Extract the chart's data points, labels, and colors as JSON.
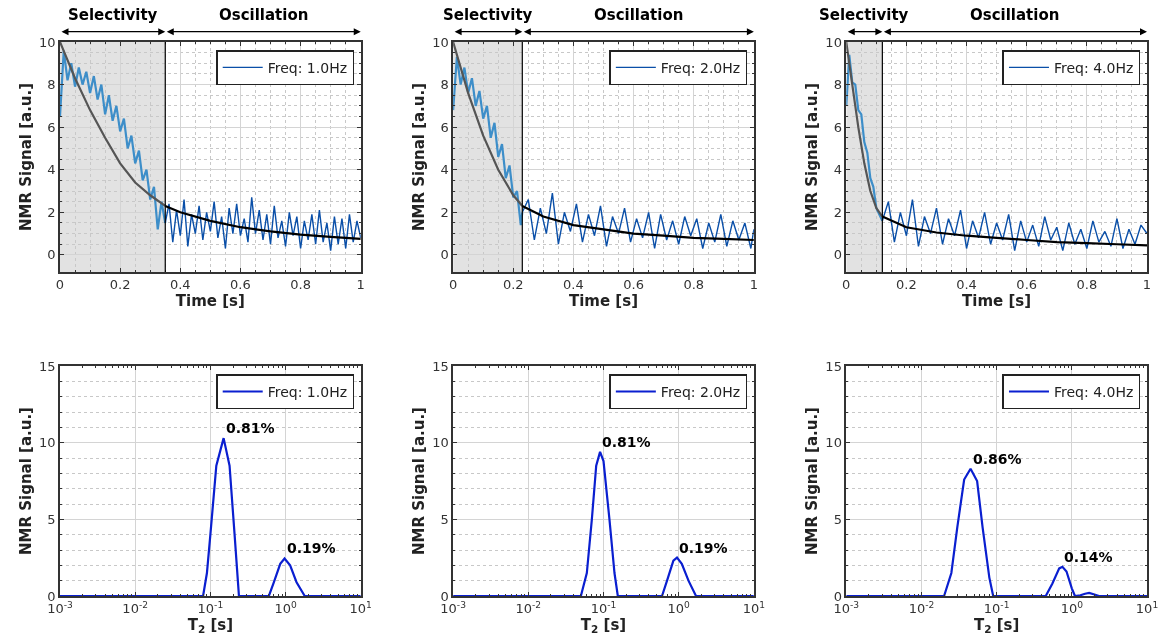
{
  "chart_data": [
    {
      "type": "line",
      "xlabel": "Time [s]",
      "ylabel": "NMR Signal [a.u.]",
      "xlim": [
        0,
        1
      ],
      "ylim": [
        -0.8,
        10
      ],
      "xticks": [
        0,
        0.2,
        0.4,
        0.6,
        0.8,
        1
      ],
      "yticks": [
        0,
        2,
        4,
        6,
        8,
        10
      ],
      "grid": true,
      "legend": "top right",
      "bands": [
        {
          "axis": "x",
          "from": 0,
          "to": 0.35,
          "label": "Selectivity",
          "color": "#e2e2e2"
        }
      ],
      "annotations": [
        "Oscillation"
      ],
      "ref_lines": [
        {
          "axis": "x",
          "value": 0.35,
          "color": "#000000"
        }
      ],
      "series": [
        {
          "color": "#3d8ec9",
          "x": [
            0,
            0.0125,
            0.025,
            0.0375,
            0.05,
            0.0625,
            0.075,
            0.0875,
            0.1,
            0.1125,
            0.125,
            0.1375,
            0.15,
            0.1625,
            0.175,
            0.1875,
            0.2,
            0.2125,
            0.225,
            0.2375,
            0.25,
            0.2625,
            0.275,
            0.2875,
            0.3,
            0.3125,
            0.325,
            0.3375,
            0.35
          ],
          "values": [
            6.5,
            9.6,
            8.2,
            9.0,
            7.9,
            8.8,
            8.0,
            8.6,
            7.6,
            8.4,
            7.3,
            8.0,
            6.6,
            7.5,
            6.3,
            7.0,
            5.8,
            6.4,
            5.0,
            5.6,
            4.3,
            4.9,
            3.5,
            4.0,
            2.6,
            3.2,
            1.2,
            2.5,
            1.5
          ]
        },
        {
          "name": "Freq: 1.0Hz",
          "color": "#0a4fa8",
          "x": [
            0.35,
            0.3625,
            0.375,
            0.3875,
            0.4,
            0.4125,
            0.425,
            0.4375,
            0.45,
            0.4625,
            0.475,
            0.4875,
            0.5,
            0.5125,
            0.525,
            0.5375,
            0.55,
            0.5625,
            0.575,
            0.5875,
            0.6,
            0.6125,
            0.625,
            0.6375,
            0.65,
            0.6625,
            0.675,
            0.6875,
            0.7,
            0.7125,
            0.725,
            0.7375,
            0.75,
            0.7625,
            0.775,
            0.7875,
            0.8,
            0.8125,
            0.825,
            0.8375,
            0.85,
            0.8625,
            0.875,
            0.8875,
            0.9,
            0.9125,
            0.925,
            0.9375,
            0.95,
            0.9625,
            0.975,
            0.9875,
            1
          ],
          "values": [
            1.5,
            2.4,
            0.6,
            2.1,
            0.9,
            2.6,
            0.4,
            1.9,
            1.0,
            2.3,
            0.7,
            2.0,
            1.1,
            2.5,
            0.8,
            1.8,
            0.3,
            2.2,
            1.0,
            2.4,
            0.9,
            1.7,
            0.6,
            2.7,
            1.0,
            2.1,
            0.7,
            1.9,
            0.5,
            2.3,
            0.8,
            1.6,
            0.4,
            2.0,
            0.9,
            1.8,
            0.3,
            1.6,
            0.7,
            1.9,
            0.5,
            2.1,
            0.6,
            1.5,
            0.2,
            1.8,
            0.5,
            1.7,
            0.3,
            1.9,
            0.6,
            1.6,
            0.8
          ]
        },
        {
          "color": "#555555",
          "x": [
            0,
            0.05,
            0.1,
            0.15,
            0.2,
            0.25,
            0.3,
            0.35
          ],
          "values": [
            10,
            8.3,
            6.8,
            5.5,
            4.3,
            3.4,
            2.8,
            2.3
          ]
        },
        {
          "color": "#000000",
          "x": [
            0.35,
            0.4,
            0.5,
            0.6,
            0.7,
            0.8,
            0.9,
            1
          ],
          "values": [
            2.3,
            2.0,
            1.6,
            1.3,
            1.1,
            0.95,
            0.85,
            0.75
          ]
        }
      ]
    },
    {
      "type": "line",
      "xlabel": "Time [s]",
      "ylabel": "NMR Signal [a.u.]",
      "xlim": [
        0,
        1
      ],
      "ylim": [
        -0.8,
        10
      ],
      "xticks": [
        0,
        0.2,
        0.4,
        0.6,
        0.8,
        1
      ],
      "yticks": [
        0,
        2,
        4,
        6,
        8,
        10
      ],
      "grid": true,
      "legend": "top right",
      "bands": [
        {
          "axis": "x",
          "from": 0,
          "to": 0.23,
          "label": "Selectivity",
          "color": "#e2e2e2"
        }
      ],
      "annotations": [
        "Oscillation"
      ],
      "ref_lines": [
        {
          "axis": "x",
          "value": 0.23,
          "color": "#000000"
        }
      ],
      "series": [
        {
          "color": "#3d8ec9",
          "x": [
            0,
            0.0125,
            0.025,
            0.0375,
            0.05,
            0.0625,
            0.075,
            0.0875,
            0.1,
            0.1125,
            0.125,
            0.1375,
            0.15,
            0.1625,
            0.175,
            0.1875,
            0.2,
            0.2125,
            0.225,
            0.23
          ],
          "values": [
            6.8,
            9.3,
            8.0,
            8.8,
            7.6,
            8.3,
            7.0,
            7.7,
            6.4,
            7.0,
            5.5,
            6.2,
            4.6,
            5.2,
            3.6,
            4.2,
            2.7,
            3.0,
            1.4,
            2.0
          ]
        },
        {
          "name": "Freq: 2.0Hz",
          "color": "#0a4fa8",
          "x": [
            0.23,
            0.25,
            0.27,
            0.29,
            0.31,
            0.33,
            0.35,
            0.37,
            0.39,
            0.41,
            0.43,
            0.45,
            0.47,
            0.49,
            0.51,
            0.53,
            0.55,
            0.57,
            0.59,
            0.61,
            0.63,
            0.65,
            0.67,
            0.69,
            0.71,
            0.73,
            0.75,
            0.77,
            0.79,
            0.81,
            0.83,
            0.85,
            0.87,
            0.89,
            0.91,
            0.93,
            0.95,
            0.97,
            0.99,
            1
          ],
          "values": [
            2.0,
            2.6,
            0.7,
            2.2,
            1.0,
            2.9,
            0.5,
            2.0,
            1.1,
            2.4,
            0.6,
            1.9,
            0.9,
            2.3,
            0.4,
            1.8,
            1.0,
            2.2,
            0.6,
            1.7,
            0.8,
            2.0,
            0.3,
            1.9,
            0.7,
            1.6,
            0.5,
            1.8,
            0.9,
            1.7,
            0.3,
            1.5,
            0.6,
            1.9,
            0.4,
            1.6,
            0.7,
            1.5,
            0.3,
            1.2
          ]
        },
        {
          "color": "#555555",
          "x": [
            0,
            0.05,
            0.1,
            0.15,
            0.2,
            0.23
          ],
          "values": [
            10,
            7.6,
            5.6,
            4.0,
            2.8,
            2.3
          ]
        },
        {
          "color": "#000000",
          "x": [
            0.23,
            0.3,
            0.4,
            0.5,
            0.6,
            0.7,
            0.8,
            0.9,
            1
          ],
          "values": [
            2.3,
            1.8,
            1.4,
            1.2,
            1.0,
            0.9,
            0.8,
            0.75,
            0.7
          ]
        }
      ]
    },
    {
      "type": "line",
      "xlabel": "Time [s]",
      "ylabel": "NMR Signal [a.u.]",
      "xlim": [
        0,
        1
      ],
      "ylim": [
        -0.8,
        10
      ],
      "xticks": [
        0,
        0.2,
        0.4,
        0.6,
        0.8,
        1
      ],
      "yticks": [
        0,
        2,
        4,
        6,
        8,
        10
      ],
      "grid": true,
      "legend": "top right",
      "bands": [
        {
          "axis": "x",
          "from": 0,
          "to": 0.12,
          "label": "Selectivity",
          "color": "#e2e2e2"
        }
      ],
      "annotations": [
        "Oscillation"
      ],
      "ref_lines": [
        {
          "axis": "x",
          "value": 0.12,
          "color": "#000000"
        }
      ],
      "series": [
        {
          "color": "#3d8ec9",
          "x": [
            0,
            0.01,
            0.02,
            0.03,
            0.04,
            0.05,
            0.06,
            0.07,
            0.08,
            0.09,
            0.1,
            0.11,
            0.12
          ],
          "values": [
            7.0,
            9.4,
            8.1,
            8.0,
            6.8,
            6.6,
            5.3,
            4.8,
            3.6,
            3.2,
            2.2,
            1.9,
            1.6
          ]
        },
        {
          "name": "Freq: 4.0Hz",
          "color": "#0a4fa8",
          "x": [
            0.12,
            0.14,
            0.16,
            0.18,
            0.2,
            0.22,
            0.24,
            0.26,
            0.28,
            0.3,
            0.32,
            0.34,
            0.36,
            0.38,
            0.4,
            0.42,
            0.44,
            0.46,
            0.48,
            0.5,
            0.52,
            0.54,
            0.56,
            0.58,
            0.6,
            0.62,
            0.64,
            0.66,
            0.68,
            0.7,
            0.72,
            0.74,
            0.76,
            0.78,
            0.8,
            0.82,
            0.84,
            0.86,
            0.88,
            0.9,
            0.92,
            0.94,
            0.96,
            0.98,
            1
          ],
          "values": [
            1.6,
            2.5,
            0.6,
            2.0,
            0.9,
            2.6,
            0.4,
            1.8,
            1.0,
            2.2,
            0.5,
            1.7,
            0.9,
            2.1,
            0.3,
            1.6,
            0.8,
            2.0,
            0.5,
            1.5,
            0.7,
            1.9,
            0.2,
            1.6,
            0.6,
            1.4,
            0.4,
            1.8,
            0.7,
            1.3,
            0.2,
            1.5,
            0.5,
            1.2,
            0.3,
            1.6,
            0.6,
            1.1,
            0.4,
            1.7,
            0.3,
            1.2,
            0.5,
            1.4,
            1.0
          ]
        },
        {
          "color": "#555555",
          "x": [
            0,
            0.02,
            0.04,
            0.06,
            0.08,
            0.1,
            0.12
          ],
          "values": [
            10,
            8,
            6,
            4.3,
            3.0,
            2.2,
            1.8
          ]
        },
        {
          "color": "#000000",
          "x": [
            0.12,
            0.2,
            0.3,
            0.4,
            0.5,
            0.6,
            0.7,
            0.8,
            0.9,
            1
          ],
          "values": [
            1.8,
            1.3,
            1.05,
            0.9,
            0.8,
            0.7,
            0.6,
            0.55,
            0.5,
            0.45
          ]
        }
      ]
    },
    {
      "type": "line",
      "xlabel": "T$_{2}$ [s]",
      "ylabel": "NMR Signal [a.u.]",
      "log": "x",
      "xlim": [
        0.001,
        10
      ],
      "ylim": [
        0,
        15
      ],
      "xticks": [
        {
          "value": 0.001,
          "label": "10$^{-3}$"
        },
        {
          "value": 0.01,
          "label": "10$^{-2}$"
        },
        {
          "value": 0.1,
          "label": "10$^{-1}$"
        },
        {
          "value": 1,
          "label": "10$^{0}$"
        },
        {
          "value": 10,
          "label": "10$^{1}$"
        }
      ],
      "yticks": [
        0,
        5,
        10,
        15
      ],
      "grid": true,
      "legend": "top right",
      "annotations": [
        {
          "text": "0.81%",
          "x": 0.15,
          "y": 10.3
        },
        {
          "text": "0.19%",
          "x": 0.97,
          "y": 2.45
        }
      ],
      "series": [
        {
          "name": "Freq: 1.0Hz",
          "color": "#0a1fd0",
          "x": [
            0.001,
            0.08,
            0.09,
            0.1,
            0.12,
            0.15,
            0.18,
            0.21,
            0.24,
            0.6,
            0.7,
            0.85,
            0.97,
            1.15,
            1.4,
            1.8,
            10
          ],
          "values": [
            0,
            0,
            1.5,
            4,
            8.5,
            10.3,
            8.5,
            4,
            0,
            0,
            0.9,
            2.1,
            2.45,
            2.0,
            0.9,
            0,
            0
          ]
        }
      ]
    },
    {
      "type": "line",
      "xlabel": "T$_{2}$ [s]",
      "ylabel": "NMR Signal [a.u.]",
      "log": "x",
      "xlim": [
        0.001,
        10
      ],
      "ylim": [
        0,
        15
      ],
      "xticks": [
        {
          "value": 0.001,
          "label": "10$^{-3}$"
        },
        {
          "value": 0.01,
          "label": "10$^{-2}$"
        },
        {
          "value": 0.1,
          "label": "10$^{-1}$"
        },
        {
          "value": 1,
          "label": "10$^{0}$"
        },
        {
          "value": 10,
          "label": "10$^{1}$"
        }
      ],
      "yticks": [
        0,
        5,
        10,
        15
      ],
      "grid": true,
      "legend": "top right",
      "annotations": [
        {
          "text": "0.81%",
          "x": 0.09,
          "y": 9.4
        },
        {
          "text": "0.19%",
          "x": 0.95,
          "y": 2.5
        }
      ],
      "series": [
        {
          "name": "Freq: 2.0Hz",
          "color": "#0a1fd0",
          "x": [
            0.001,
            0.05,
            0.06,
            0.07,
            0.08,
            0.09,
            0.1,
            0.12,
            0.14,
            0.155,
            0.6,
            0.7,
            0.85,
            0.95,
            1.1,
            1.35,
            1.7,
            10
          ],
          "values": [
            0,
            0,
            1.5,
            5,
            8.5,
            9.4,
            8.8,
            5,
            1.5,
            0,
            0,
            1,
            2.3,
            2.5,
            2.1,
            1,
            0,
            0
          ]
        }
      ]
    },
    {
      "type": "line",
      "xlabel": "T$_{2}$ [s]",
      "ylabel": "NMR Signal [a.u.]",
      "log": "x",
      "xlim": [
        0.001,
        10
      ],
      "ylim": [
        0,
        15
      ],
      "xticks": [
        {
          "value": 0.001,
          "label": "10$^{-3}$"
        },
        {
          "value": 0.01,
          "label": "10$^{-2}$"
        },
        {
          "value": 0.1,
          "label": "10$^{-1}$"
        },
        {
          "value": 1,
          "label": "10$^{0}$"
        },
        {
          "value": 10,
          "label": "10$^{1}$"
        }
      ],
      "yticks": [
        0,
        5,
        10,
        15
      ],
      "grid": true,
      "legend": "top right",
      "annotations": [
        {
          "text": "0.86%",
          "x": 0.045,
          "y": 8.3
        },
        {
          "text": "0.14%",
          "x": 0.75,
          "y": 1.9
        }
      ],
      "series": [
        {
          "name": "Freq: 4.0Hz",
          "color": "#0a1fd0",
          "x": [
            0.001,
            0.02,
            0.025,
            0.03,
            0.037,
            0.045,
            0.055,
            0.065,
            0.08,
            0.09,
            0.45,
            0.55,
            0.68,
            0.75,
            0.85,
            1.0,
            1.1,
            1.3,
            1.5,
            1.7,
            2.0,
            2.3,
            10
          ],
          "values": [
            0,
            0,
            1.5,
            4.5,
            7.6,
            8.3,
            7.5,
            4.5,
            1.2,
            0,
            0,
            0.8,
            1.8,
            1.9,
            1.6,
            0.5,
            0,
            0.05,
            0.15,
            0.2,
            0.1,
            0,
            0
          ]
        }
      ]
    }
  ]
}
